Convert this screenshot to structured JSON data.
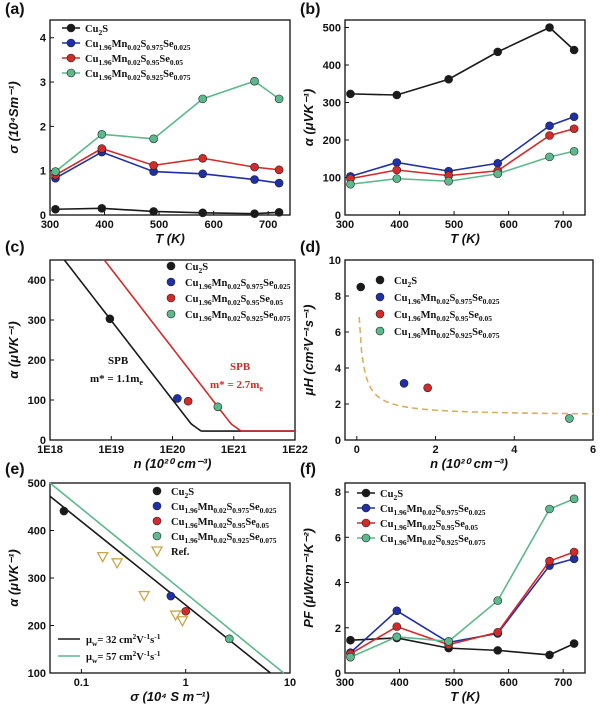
{
  "colors": {
    "black": "#1a1a1a",
    "blue": "#1f2fa8",
    "red": "#d42a2a",
    "green": "#5bb98c",
    "ref": "#c9a64a",
    "dash": "#d8b060"
  },
  "legend_series": [
    {
      "key": "s0",
      "base": "Cu",
      "sub": "2",
      "rest": "S",
      "sub2": "",
      "rest2": "",
      "sub3": "",
      "rest3": "",
      "sub4": ""
    },
    {
      "key": "s1",
      "base": "Cu",
      "sub": "1.96",
      "rest": "Mn",
      "sub2": "0.02",
      "rest2": "S",
      "sub3": "0.975",
      "rest3": "Se",
      "sub4": "0.025"
    },
    {
      "key": "s2",
      "base": "Cu",
      "sub": "1.96",
      "rest": "Mn",
      "sub2": "0.02",
      "rest2": "S",
      "sub3": "0.95",
      "rest3": "Se",
      "sub4": "0.05"
    },
    {
      "key": "s3",
      "base": "Cu",
      "sub": "1.96",
      "rest": "Mn",
      "sub2": "0.02",
      "rest2": "S",
      "sub3": "0.925",
      "rest3": "Se",
      "sub4": "0.075"
    }
  ],
  "chart_data": [
    {
      "panel": "(a)",
      "type": "line",
      "xlabel": "T (K)",
      "ylabel": "σ (10⁴Sm⁻¹)",
      "xlim": [
        300,
        740
      ],
      "ylim": [
        0,
        4.4
      ],
      "xticks": [
        300,
        400,
        500,
        600,
        700
      ],
      "yticks": [
        0,
        1,
        2,
        3,
        4
      ],
      "x": [
        310,
        395,
        490,
        580,
        675,
        720
      ],
      "series": [
        {
          "name": "Cu2S",
          "color": "black",
          "values": [
            0.13,
            0.15,
            0.08,
            0.05,
            0.03,
            0.06
          ]
        },
        {
          "name": "Cu1.96Mn0.02S0.975Se0.025",
          "color": "blue",
          "values": [
            0.83,
            1.42,
            0.98,
            0.93,
            0.8,
            0.72
          ]
        },
        {
          "name": "Cu1.96Mn0.02S0.95Se0.05",
          "color": "red",
          "values": [
            0.9,
            1.5,
            1.12,
            1.28,
            1.08,
            1.02
          ]
        },
        {
          "name": "Cu1.96Mn0.02S0.925Se0.075",
          "color": "green",
          "values": [
            0.98,
            1.82,
            1.72,
            2.62,
            3.02,
            2.62
          ]
        }
      ]
    },
    {
      "panel": "(b)",
      "type": "line",
      "xlabel": "T (K)",
      "ylabel": "α (μVK⁻¹)",
      "xlim": [
        300,
        740
      ],
      "ylim": [
        0,
        520
      ],
      "xticks": [
        300,
        400,
        500,
        600,
        700
      ],
      "yticks": [
        0,
        100,
        200,
        300,
        400,
        500
      ],
      "x": [
        310,
        395,
        490,
        580,
        675,
        720
      ],
      "series": [
        {
          "name": "Cu2S",
          "color": "black",
          "values": [
            323,
            320,
            362,
            435,
            500,
            440
          ]
        },
        {
          "name": "Cu1.96Mn0.02S0.975Se0.025",
          "color": "blue",
          "values": [
            103,
            140,
            117,
            138,
            238,
            262
          ]
        },
        {
          "name": "Cu1.96Mn0.02S0.95Se0.05",
          "color": "red",
          "values": [
            97,
            120,
            105,
            118,
            212,
            230
          ]
        },
        {
          "name": "Cu1.96Mn0.02S0.925Se0.075",
          "color": "green",
          "values": [
            82,
            97,
            90,
            110,
            155,
            170
          ]
        }
      ]
    },
    {
      "panel": "(c)",
      "type": "scatter",
      "xlabel": "n (10²⁰ cm⁻³)",
      "ylabel": "α (μVK⁻¹)",
      "xscale": "log",
      "xlim": [
        1e+18,
        1e+22
      ],
      "ylim": [
        0,
        450
      ],
      "xticks": [
        "1E18",
        "1E19",
        "1E20",
        "1E21",
        "1E22"
      ],
      "yticks": [
        0,
        100,
        200,
        300,
        400
      ],
      "points": [
        {
          "name": "Cu2S",
          "color": "black",
          "x": 9.5e+18,
          "y": 303
        },
        {
          "name": "Cu1.96Mn0.02S0.975Se0.025",
          "color": "blue",
          "x": 1.2e+20,
          "y": 104
        },
        {
          "name": "Cu1.96Mn0.02S0.95Se0.05",
          "color": "red",
          "x": 1.8e+20,
          "y": 97
        },
        {
          "name": "Cu1.96Mn0.02S0.925Se0.075",
          "color": "green",
          "x": 5.5e+20,
          "y": 83
        }
      ],
      "curves": [
        {
          "color": "black",
          "ref_x": 9.5e+18,
          "ref_y": 303
        },
        {
          "color": "red",
          "ref_x": 5.5e+20,
          "ref_y": 83
        }
      ],
      "annotations": {
        "spb1": "SPB",
        "m1_a": "m",
        "m1_b": "* = 1.1m",
        "m1_c": "e",
        "spb2": "SPB",
        "m2_a": "m",
        "m2_b": "* = 2.7m",
        "m2_c": "e"
      }
    },
    {
      "panel": "(d)",
      "type": "scatter",
      "xlabel": "n (10²⁰ cm⁻³)",
      "ylabel": "μH (cm²V⁻¹s⁻¹)",
      "xlim": [
        -0.3,
        6
      ],
      "ylim": [
        0,
        10
      ],
      "xticks": [
        0,
        2,
        4,
        6
      ],
      "yticks": [
        0,
        2,
        4,
        6,
        8,
        10
      ],
      "points": [
        {
          "name": "Cu2S",
          "color": "black",
          "x": 0.1,
          "y": 8.5
        },
        {
          "name": "Cu1.96Mn0.02S0.975Se0.025",
          "color": "blue",
          "x": 1.2,
          "y": 3.15
        },
        {
          "name": "Cu1.96Mn0.02S0.95Se0.05",
          "color": "red",
          "x": 1.8,
          "y": 2.9
        },
        {
          "name": "Cu1.96Mn0.02S0.925Se0.075",
          "color": "green",
          "x": 5.4,
          "y": 1.2
        }
      ],
      "fit": {
        "style": "dashed",
        "color": "dash",
        "a": 0.63,
        "b": 0.55,
        "c": 1.35
      }
    },
    {
      "panel": "(e)",
      "type": "scatter",
      "xlabel": "σ (10⁴ S m⁻¹)",
      "ylabel": "α (μVK⁻¹)",
      "xscale": "log",
      "xlim": [
        0.05,
        10
      ],
      "ylim": [
        100,
        500
      ],
      "xticks": [
        "0.1",
        "1",
        "10"
      ],
      "yticks": [
        100,
        200,
        300,
        400,
        500
      ],
      "points": [
        {
          "name": "Cu2S",
          "color": "black",
          "x": 0.068,
          "y": 441
        },
        {
          "name": "Cu1.96Mn0.02S0.975Se0.025",
          "color": "blue",
          "x": 0.72,
          "y": 262
        },
        {
          "name": "Cu1.96Mn0.02S0.95Se0.05",
          "color": "red",
          "x": 1.0,
          "y": 230
        },
        {
          "name": "Cu1.96Mn0.02S0.925Se0.075",
          "color": "green",
          "x": 2.62,
          "y": 172
        }
      ],
      "ref_points": [
        {
          "x": 0.16,
          "y": 345
        },
        {
          "x": 0.22,
          "y": 332
        },
        {
          "x": 0.4,
          "y": 263
        },
        {
          "x": 0.8,
          "y": 222
        },
        {
          "x": 0.93,
          "y": 210
        }
      ],
      "lines": [
        {
          "name": "μw= 32 cm²V⁻¹s⁻¹",
          "color": "black",
          "x0": 0.05,
          "y0": 472,
          "x1": 6.5,
          "y1": 100
        },
        {
          "name": "μw= 57 cm²V⁻¹s⁻¹",
          "color": "green",
          "x0": 0.05,
          "y0": 500,
          "x1": 8.7,
          "y1": 100
        }
      ],
      "legend_ref": "Ref.",
      "mu_labels": {
        "l1_a": "μ",
        "l1_b": "w",
        "l1_c": "= 32 cm",
        "l1_d": "2",
        "l1_e": "V",
        "l1_f": "-1",
        "l1_g": "s",
        "l1_h": "-1",
        "l2_a": "μ",
        "l2_b": "w",
        "l2_c": "= 57 cm",
        "l2_d": "2",
        "l2_e": "V",
        "l2_f": "-1",
        "l2_g": "s",
        "l2_h": "-1"
      }
    },
    {
      "panel": "(f)",
      "type": "line",
      "xlabel": "T (K)",
      "ylabel": "PF (μWcm⁻¹K⁻²)",
      "xlim": [
        300,
        740
      ],
      "ylim": [
        0,
        8.4
      ],
      "xticks": [
        300,
        400,
        500,
        600,
        700
      ],
      "yticks": [
        0,
        2,
        4,
        6,
        8
      ],
      "x": [
        310,
        395,
        490,
        580,
        675,
        720
      ],
      "series": [
        {
          "name": "Cu2S",
          "color": "black",
          "values": [
            1.45,
            1.55,
            1.1,
            1.0,
            0.8,
            1.3
          ]
        },
        {
          "name": "Cu1.96Mn0.02S0.975Se0.025",
          "color": "blue",
          "values": [
            0.9,
            2.75,
            1.35,
            1.75,
            4.75,
            5.05
          ]
        },
        {
          "name": "Cu1.96Mn0.02S0.95Se0.05",
          "color": "red",
          "values": [
            0.85,
            2.05,
            1.25,
            1.8,
            4.95,
            5.35
          ]
        },
        {
          "name": "Cu1.96Mn0.02S0.925Se0.075",
          "color": "green",
          "values": [
            0.7,
            1.6,
            1.4,
            3.2,
            7.25,
            7.7
          ]
        }
      ]
    }
  ]
}
